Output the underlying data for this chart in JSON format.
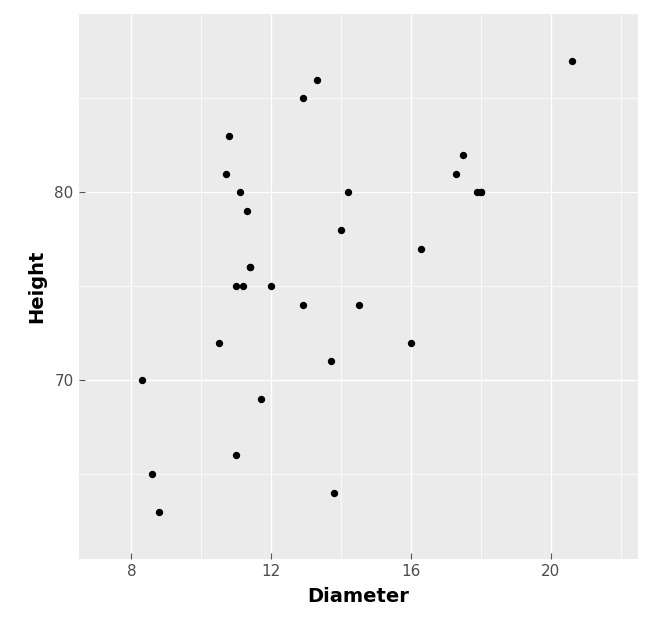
{
  "diameter": [
    8.3,
    8.6,
    8.8,
    10.5,
    10.7,
    10.8,
    11.0,
    11.0,
    11.1,
    11.2,
    11.3,
    11.4,
    11.4,
    11.7,
    12.0,
    12.9,
    12.9,
    13.3,
    13.7,
    13.8,
    14.0,
    14.2,
    14.5,
    16.0,
    16.3,
    17.3,
    17.5,
    17.9,
    18.0,
    18.0,
    20.6
  ],
  "height": [
    70,
    65,
    63,
    72,
    81,
    83,
    66,
    75,
    80,
    75,
    79,
    76,
    76,
    69,
    75,
    74,
    85,
    86,
    71,
    64,
    78,
    80,
    74,
    72,
    77,
    81,
    82,
    80,
    80,
    80,
    87
  ],
  "xlabel": "Diameter",
  "ylabel": "Height",
  "xlim": [
    6.5,
    22.5
  ],
  "ylim": [
    60.5,
    89.5
  ],
  "xticks": [
    8,
    12,
    16,
    20
  ],
  "yticks": [
    70,
    80
  ],
  "bg_color": "#EBEBEB",
  "point_color": "#000000",
  "point_size": 28,
  "grid_color": "#FFFFFF",
  "axis_label_fontsize": 14,
  "tick_fontsize": 11,
  "tick_color": "#4D4D4D",
  "label_color": "#000000"
}
